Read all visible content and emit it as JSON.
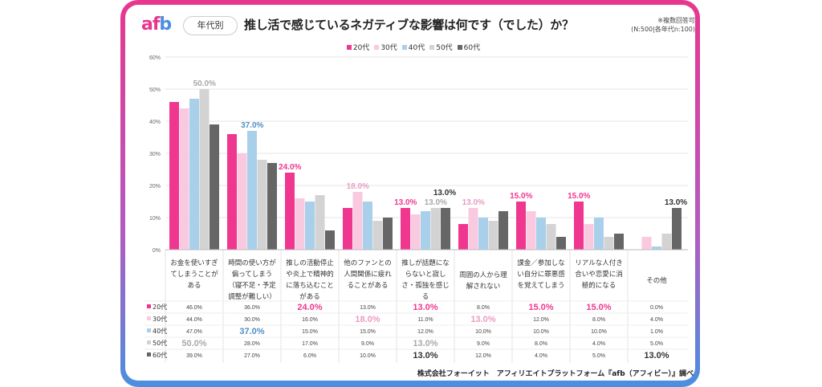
{
  "header": {
    "logo_a": "af",
    "logo_b": "b",
    "tag": "年代別",
    "title": "推し活で感じているネガティブな影響は何です（でした）か？",
    "note1": "※複数回答可",
    "note2": "(N:500|各年代n:100)"
  },
  "source": "株式会社フォーイット　アフィリエイトプラットフォーム『afb（アフィビー）』調べ",
  "chart_data": {
    "type": "bar",
    "ylim": [
      0,
      60
    ],
    "yticks": [
      "0%",
      "10%",
      "20%",
      "30%",
      "40%",
      "50%",
      "60%"
    ],
    "grid": true,
    "legend_placement": "top",
    "categories": [
      [
        "お金を使いすぎ",
        "てしまうことが",
        "ある"
      ],
      [
        "時間の使い方が",
        "偏ってしまう",
        "（寝不足・予定",
        "調整が難しい）"
      ],
      [
        "推しの活動停止",
        "や炎上で精神的",
        "に落ち込むこと",
        "がある"
      ],
      [
        "他のファンとの",
        "人間関係に疲れ",
        "ることがある"
      ],
      [
        "推しが話題にな",
        "らないと寂し",
        "さ・孤独を感じ",
        "る"
      ],
      [
        "周囲の人から理",
        "解されない"
      ],
      [
        "課金／参加しな",
        "い自分に罪悪感",
        "を覚えてしまう"
      ],
      [
        "リアルな人付き",
        "合いや恋愛に消",
        "極的になる"
      ],
      [
        "その他"
      ]
    ],
    "series": [
      {
        "name": "20代",
        "color": "#f0378f",
        "values": [
          46,
          36,
          24,
          13,
          13,
          8,
          15,
          15,
          0
        ],
        "highlight": [
          2,
          4,
          6,
          7
        ]
      },
      {
        "name": "30代",
        "color": "#f9c9e0",
        "label_color": "#e99cc4",
        "values": [
          44,
          30,
          16,
          18,
          11,
          13,
          12,
          8,
          4
        ],
        "highlight": [
          3,
          5
        ]
      },
      {
        "name": "40代",
        "color": "#a9d0ea",
        "label_color": "#4f8fc4",
        "values": [
          47,
          37,
          15,
          15,
          12,
          10,
          10,
          10,
          1
        ],
        "highlight": [
          1
        ]
      },
      {
        "name": "50代",
        "color": "#d3d3d3",
        "label_color": "#a9a9a9",
        "values": [
          50,
          28,
          17,
          9,
          13,
          9,
          8,
          4,
          5
        ],
        "highlight": [
          0,
          4
        ]
      },
      {
        "name": "60代",
        "color": "#666666",
        "label_color": "#333333",
        "values": [
          39,
          27,
          6,
          10,
          13,
          12,
          4,
          5,
          13
        ],
        "highlight": [
          4,
          8
        ]
      }
    ]
  }
}
